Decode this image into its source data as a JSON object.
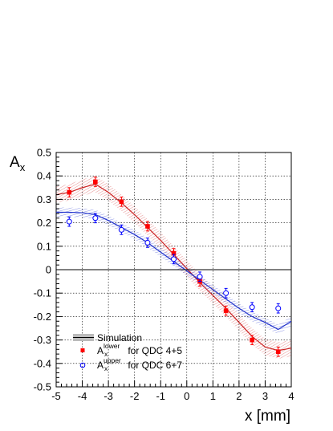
{
  "chart_data": {
    "type": "scatter",
    "ylabel": "A",
    "ylabel_sub": "x",
    "xlabel": "x [mm]",
    "xlim": [
      -5,
      4
    ],
    "ylim": [
      -0.5,
      0.5
    ],
    "x_ticks": [
      -5,
      -4,
      -3,
      -2,
      -1,
      0,
      1,
      2,
      3,
      4
    ],
    "x_tick_labels": [
      "-5",
      "-4",
      "-3",
      "-2",
      "-1",
      "0",
      "1",
      "2",
      "3",
      "4"
    ],
    "y_ticks": [
      -0.5,
      -0.4,
      -0.3,
      -0.2,
      -0.1,
      0,
      0.1,
      0.2,
      0.3,
      0.4,
      0.5
    ],
    "y_tick_labels": [
      "-0.5",
      "-0.4",
      "-0.3",
      "-0.2",
      "-0.1",
      "0",
      "0.1",
      "0.2",
      "0.3",
      "0.4",
      "0.5"
    ],
    "grid": true,
    "legend_position": "bottom-left",
    "series": [
      {
        "kind": "points",
        "marker": "filled-square",
        "color": "#ff0000",
        "legend_main": "A",
        "legend_sub": "x",
        "legend_sup": "lower",
        "legend_rest": " for QDC 4+5",
        "x": [
          -4.5,
          -3.5,
          -2.5,
          -1.5,
          -0.5,
          0.5,
          1.5,
          2.5,
          3.5
        ],
        "y": [
          0.33,
          0.375,
          0.29,
          0.185,
          0.07,
          -0.05,
          -0.175,
          -0.3,
          -0.35
        ],
        "err": [
          0.02,
          0.02,
          0.02,
          0.02,
          0.02,
          0.02,
          0.02,
          0.02,
          0.02
        ]
      },
      {
        "kind": "points",
        "marker": "open-circle",
        "color": "#0000ff",
        "legend_main": "A",
        "legend_sub": "x",
        "legend_sup": "upper",
        "legend_rest": " for QDC 6+7",
        "x": [
          -4.5,
          -3.5,
          -2.5,
          -1.5,
          -0.5,
          0.5,
          1.5,
          2.5,
          3.5
        ],
        "y": [
          0.205,
          0.22,
          0.17,
          0.115,
          0.045,
          -0.03,
          -0.1,
          -0.16,
          -0.165
        ],
        "err": [
          0.02,
          0.02,
          0.02,
          0.02,
          0.02,
          0.02,
          0.02,
          0.02,
          0.02
        ]
      },
      {
        "kind": "band",
        "legend": "Simulation",
        "color": "#cc2222",
        "x": [
          -5.0,
          -4.5,
          -4.0,
          -3.5,
          -3.0,
          -2.5,
          -2.0,
          -1.5,
          -1.0,
          -0.5,
          0.0,
          0.5,
          1.0,
          1.5,
          2.0,
          2.5,
          3.0,
          3.5,
          4.0
        ],
        "y": [
          0.32,
          0.33,
          0.35,
          0.365,
          0.33,
          0.285,
          0.235,
          0.18,
          0.125,
          0.065,
          0.005,
          -0.055,
          -0.11,
          -0.165,
          -0.225,
          -0.285,
          -0.33,
          -0.345,
          -0.335
        ],
        "half_width": 0.035
      },
      {
        "kind": "band",
        "legend": "",
        "color": "#2233cc",
        "x": [
          -5.0,
          -4.5,
          -4.0,
          -3.5,
          -3.0,
          -2.5,
          -2.0,
          -1.5,
          -1.0,
          -0.5,
          0.0,
          0.5,
          1.0,
          1.5,
          2.0,
          2.5,
          3.0,
          3.5,
          4.0
        ],
        "y": [
          0.245,
          0.245,
          0.243,
          0.235,
          0.21,
          0.18,
          0.15,
          0.115,
          0.075,
          0.035,
          -0.005,
          -0.045,
          -0.085,
          -0.125,
          -0.165,
          -0.2,
          -0.225,
          -0.255,
          -0.22
        ],
        "half_width": 0.02
      }
    ],
    "legend_items": [
      {
        "kind": "band",
        "text": "Simulation"
      }
    ]
  }
}
